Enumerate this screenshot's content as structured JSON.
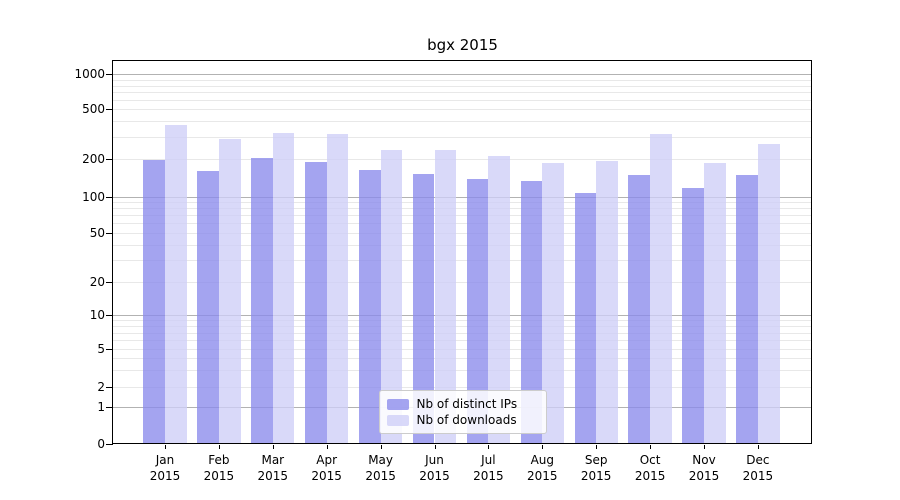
{
  "title": "bgx 2015",
  "chart_data": {
    "type": "bar",
    "title": "bgx 2015",
    "categories": [
      "Jan",
      "Feb",
      "Mar",
      "Apr",
      "May",
      "Jun",
      "Jul",
      "Aug",
      "Sep",
      "Oct",
      "Nov",
      "Dec"
    ],
    "year_label": "2015",
    "series": [
      {
        "name": "Nb of distinct IPs",
        "color": "#8a8aec",
        "values": [
          197,
          162,
          204,
          191,
          165,
          151,
          139,
          134,
          108,
          150,
          117,
          149
        ]
      },
      {
        "name": "Nb of downloads",
        "color": "#cecef7",
        "values": [
          375,
          290,
          322,
          320,
          238,
          237,
          211,
          188,
          194,
          320,
          188,
          264
        ]
      }
    ],
    "bar_alpha": 0.78,
    "yscale": "symlog",
    "ylim": [
      0,
      1280
    ],
    "yticks": [
      0,
      1,
      2,
      5,
      10,
      20,
      50,
      100,
      200,
      500,
      1000
    ],
    "grid": "both",
    "legend_position": "lower center",
    "xlabel": "",
    "ylabel": ""
  },
  "legend": {
    "items": [
      {
        "label": "Nb of distinct IPs",
        "color": "#8a8aec"
      },
      {
        "label": "Nb of downloads",
        "color": "#cecef7"
      }
    ]
  },
  "colors": {
    "major_grid": "#b2b2b2",
    "minor_grid": "#e8e8e8",
    "spine": "#000000",
    "text": "#000000",
    "background": "#ffffff"
  }
}
